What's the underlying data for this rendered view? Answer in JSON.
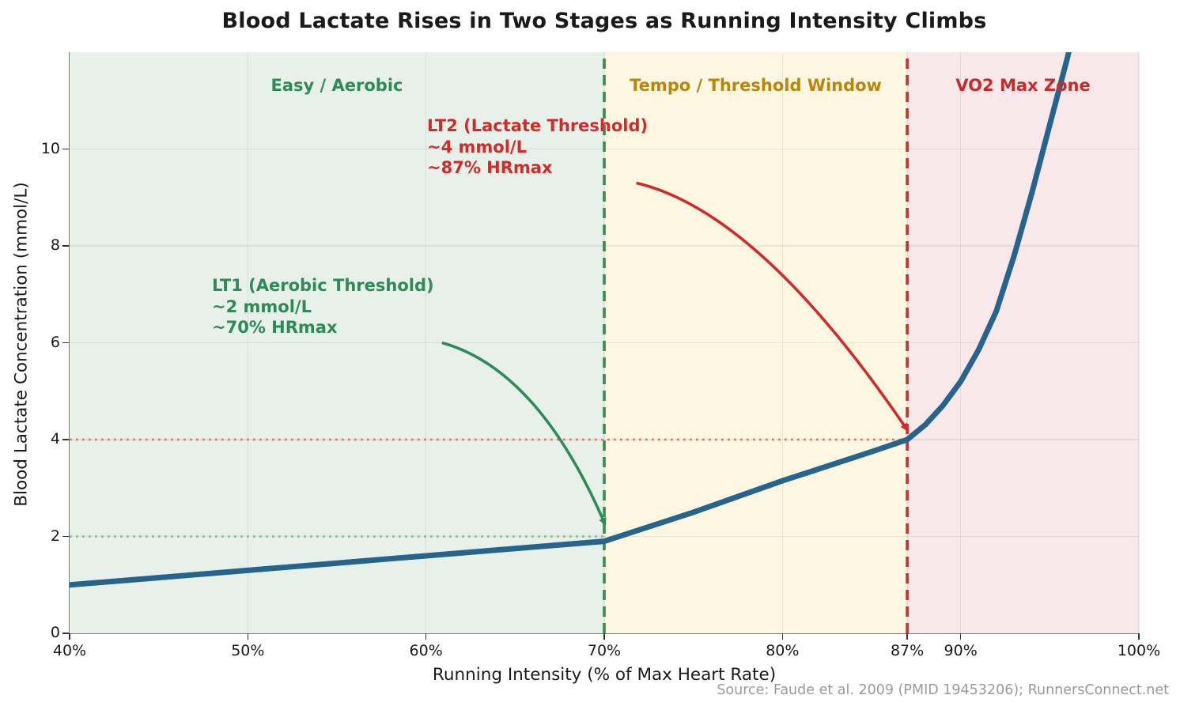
{
  "title": "Blood Lactate Rises in Two Stages as Running Intensity Climbs",
  "source": "Source: Faude et al. 2009 (PMID 19453206); RunnersConnect.net",
  "chart_data": {
    "type": "line",
    "title": "Blood Lactate Rises in Two Stages as Running Intensity Climbs",
    "xlabel": "Running Intensity (% of Max Heart Rate)",
    "ylabel": "Blood Lactate Concentration (mmol/L)",
    "xlim": [
      40,
      100
    ],
    "ylim": [
      0,
      12
    ],
    "grid": true,
    "x_ticks": [
      {
        "value": 40,
        "label": "40%"
      },
      {
        "value": 50,
        "label": "50%"
      },
      {
        "value": 60,
        "label": "60%"
      },
      {
        "value": 70,
        "label": "70%"
      },
      {
        "value": 80,
        "label": "80%"
      },
      {
        "value": 87,
        "label": "87%"
      },
      {
        "value": 90,
        "label": "90%"
      },
      {
        "value": 100,
        "label": "100%"
      }
    ],
    "y_ticks": [
      {
        "value": 0,
        "label": "0"
      },
      {
        "value": 2,
        "label": "2"
      },
      {
        "value": 4,
        "label": "4"
      },
      {
        "value": 6,
        "label": "6"
      },
      {
        "value": 8,
        "label": "8"
      },
      {
        "value": 10,
        "label": "10"
      }
    ],
    "series": [
      {
        "name": "Blood lactate concentration",
        "color": "#26648e",
        "width": 7,
        "points": [
          [
            40,
            1.0
          ],
          [
            45,
            1.15
          ],
          [
            50,
            1.3
          ],
          [
            55,
            1.45
          ],
          [
            60,
            1.6
          ],
          [
            65,
            1.75
          ],
          [
            70,
            1.9
          ],
          [
            75,
            2.5
          ],
          [
            80,
            3.15
          ],
          [
            85,
            3.75
          ],
          [
            87,
            4.0
          ],
          [
            88,
            4.3
          ],
          [
            89,
            4.7
          ],
          [
            90,
            5.2
          ],
          [
            91,
            5.85
          ],
          [
            92,
            6.65
          ],
          [
            93,
            7.8
          ],
          [
            94,
            9.1
          ],
          [
            95,
            10.5
          ],
          [
            96,
            11.9
          ],
          [
            96.5,
            12.7
          ]
        ]
      }
    ],
    "zones": [
      {
        "label": "Easy / Aerobic",
        "from": 40,
        "to": 70,
        "bg": "#e8f1e9",
        "color": "#2e8b57"
      },
      {
        "label": "Tempo / Threshold Window",
        "from": 70,
        "to": 87,
        "bg": "#fdf7e1",
        "color": "#b8860b"
      },
      {
        "label": "VO2 Max Zone",
        "from": 87,
        "to": 100,
        "bg": "#f8e8ea",
        "color": "#c62b2b"
      }
    ],
    "thresholds": [
      {
        "id": "LT1",
        "pct": 70,
        "value": 2,
        "dash_color": "#3f8f54",
        "dot_color": "#84b892"
      },
      {
        "id": "LT2",
        "pct": 87,
        "value": 4,
        "dash_color": "#bb3d3a",
        "dot_color": "#de7a6b"
      }
    ],
    "annotations": [
      {
        "id": "LT1",
        "lines": [
          "LT1 (Aerobic Threshold)",
          "~2 mmol/L",
          "~70% HRmax"
        ],
        "color": "#2e8b57"
      },
      {
        "id": "LT2",
        "lines": [
          "LT2 (Lactate Threshold)",
          "~4 mmol/L",
          "~87% HRmax"
        ],
        "color": "#cf2b2b"
      }
    ],
    "arrows": [
      {
        "id": "LT1-arrow",
        "color": "#2e8b57",
        "from": [
          60.9,
          6.0
        ],
        "control": [
          66.3,
          5.45
        ],
        "to": [
          70.05,
          2.25
        ]
      },
      {
        "id": "LT2-arrow",
        "color": "#cf2b2b",
        "from": [
          71.8,
          9.3
        ],
        "control": [
          78.7,
          8.7
        ],
        "to": [
          87.0,
          4.2
        ]
      }
    ]
  }
}
